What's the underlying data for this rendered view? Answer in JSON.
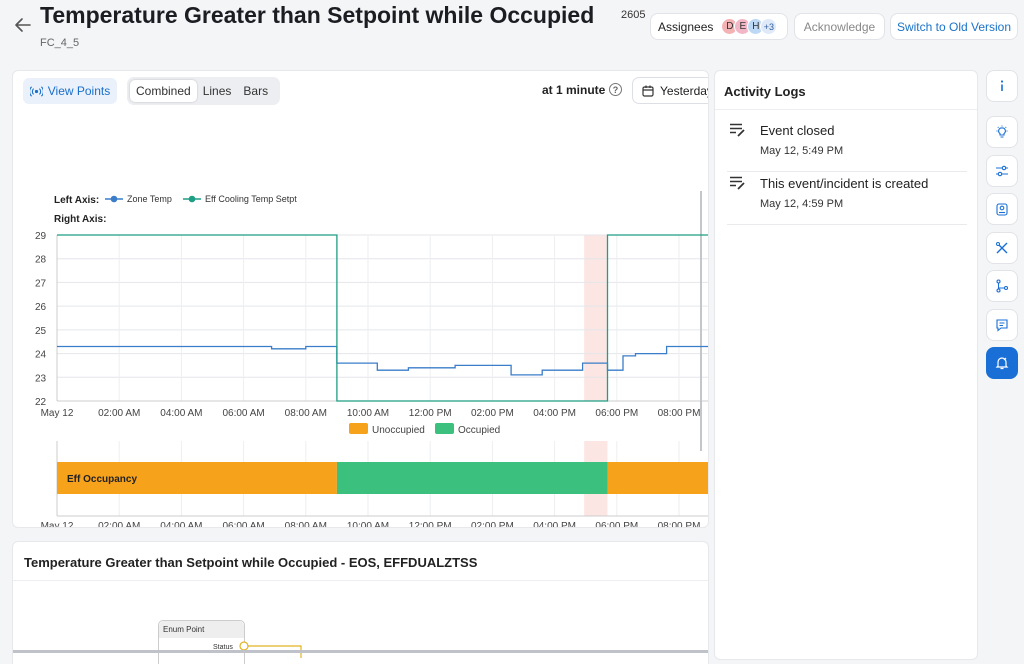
{
  "header": {
    "title": "Temperature Greater than Setpoint while Occupied",
    "subtitle": "FC_4_5",
    "id_fragment": "2605",
    "assignees_label": "Assignees",
    "avatars": [
      {
        "letter": "D",
        "color": "#f3b3b5"
      },
      {
        "letter": "E",
        "color": "#f2b7c6"
      },
      {
        "letter": "H",
        "color": "#bcd8f4"
      },
      {
        "letter": "+3",
        "color": "#dfe9f8"
      }
    ],
    "acknowledge_label": "Acknowledge",
    "old_version_label": "Switch to Old Version"
  },
  "toolbar": {
    "view_points_label": "View Points",
    "modes": [
      "Combined",
      "Lines",
      "Bars"
    ],
    "active_mode": "Combined",
    "interval_label": "at 1 minute",
    "date_label": "Yesterday"
  },
  "chart": {
    "left_axis_label": "Left Axis:",
    "right_axis_label": "Right Axis:",
    "legend_occupancy": [
      "Unoccupied",
      "Occupied"
    ],
    "occupancy_series_label": "Eff Occupancy",
    "colors": {
      "zone": "#3a7dc9",
      "setpt": "#1e9e84",
      "unocc": "#f7a21b",
      "occ": "#3cc07d",
      "highlight": "#fbe6e4"
    }
  },
  "chart_data": {
    "type": "line",
    "x_ticks": [
      "May 12",
      "02:00 AM",
      "04:00 AM",
      "06:00 AM",
      "08:00 AM",
      "10:00 AM",
      "12:00 PM",
      "02:00 PM",
      "04:00 PM",
      "06:00 PM",
      "08:00 PM"
    ],
    "y_ticks": [
      22,
      23,
      24,
      25,
      26,
      27,
      28,
      29
    ],
    "ylim": [
      22,
      29
    ],
    "xlim_hours": [
      0,
      21
    ],
    "series": [
      {
        "name": "Zone Temp",
        "color": "#3a7dc9",
        "points": [
          [
            0,
            24.3
          ],
          [
            6.9,
            24.3
          ],
          [
            6.9,
            24.2
          ],
          [
            8.0,
            24.2
          ],
          [
            8.0,
            24.3
          ],
          [
            9.0,
            24.3
          ],
          [
            9.0,
            23.6
          ],
          [
            10.3,
            23.6
          ],
          [
            10.3,
            23.3
          ],
          [
            11.3,
            23.3
          ],
          [
            11.3,
            23.4
          ],
          [
            12.8,
            23.4
          ],
          [
            12.8,
            23.5
          ],
          [
            14.6,
            23.5
          ],
          [
            14.6,
            23.1
          ],
          [
            15.6,
            23.1
          ],
          [
            15.6,
            23.3
          ],
          [
            16.9,
            23.3
          ],
          [
            16.9,
            23.6
          ],
          [
            17.7,
            23.6
          ],
          [
            17.7,
            23.3
          ],
          [
            18.2,
            23.3
          ],
          [
            18.2,
            23.9
          ],
          [
            18.6,
            23.9
          ],
          [
            18.6,
            24.0
          ],
          [
            19.6,
            24.0
          ],
          [
            19.6,
            24.3
          ],
          [
            21,
            24.3
          ]
        ]
      },
      {
        "name": "Eff Cooling Temp Setpt",
        "color": "#1e9e84",
        "points": [
          [
            0,
            29
          ],
          [
            9.0,
            29
          ],
          [
            9.0,
            22
          ],
          [
            17.7,
            22
          ],
          [
            17.7,
            29
          ],
          [
            21,
            29
          ]
        ]
      }
    ],
    "occupancy": [
      {
        "state": "Unoccupied",
        "from": 0,
        "to": 9.0
      },
      {
        "state": "Occupied",
        "from": 9.0,
        "to": 17.7
      },
      {
        "state": "Unoccupied",
        "from": 17.7,
        "to": 21
      }
    ],
    "highlight_range": [
      16.95,
      17.7
    ]
  },
  "table_section": {
    "title": "Temperature Greater than Setpoint while Occupied - EOS, EFFDUALZTSS",
    "node_title": "Enum Point",
    "node_field": "Status"
  },
  "activity": {
    "title": "Activity Logs",
    "items": [
      {
        "text": "Event closed",
        "time": "May 12, 5:49 PM"
      },
      {
        "text": "This event/incident is created",
        "time": "May 12, 4:59 PM"
      }
    ]
  },
  "rail": [
    {
      "icon": "info-icon",
      "active": false
    },
    {
      "icon": "lightbulb-icon",
      "active": false
    },
    {
      "icon": "sliders-icon",
      "active": false
    },
    {
      "icon": "clipboard-icon",
      "active": false
    },
    {
      "icon": "tools-icon",
      "active": false
    },
    {
      "icon": "branch-icon",
      "active": false
    },
    {
      "icon": "comment-icon",
      "active": false
    },
    {
      "icon": "bell-icon",
      "active": true
    }
  ]
}
